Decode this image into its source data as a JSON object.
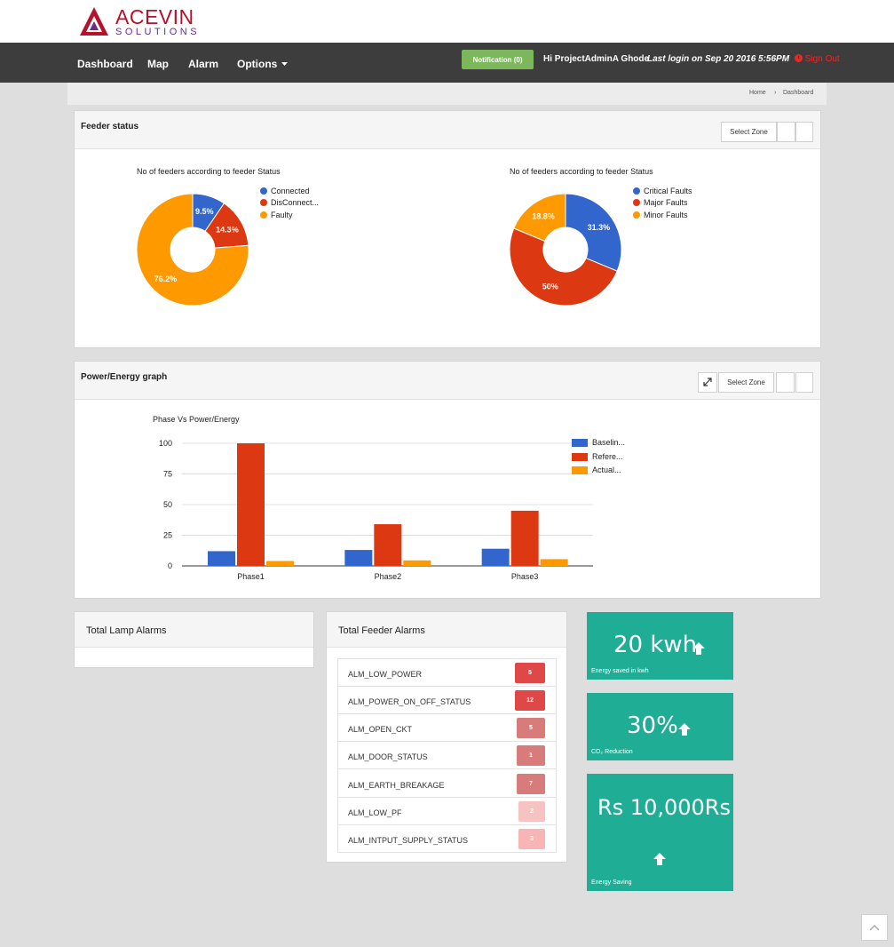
{
  "brand": {
    "name": "ACEVIN",
    "sub": "SOLUTIONS",
    "color": "#b5122d",
    "sub_color": "#6a2b8c"
  },
  "nav": {
    "items": [
      "Dashboard",
      "Map",
      "Alarm",
      "Options"
    ],
    "notification_label": "Notification (0)",
    "greeting": "Hi ProjectAdminA Ghode",
    "last_login": "Last login on Sep 20 2016 5:56PM",
    "sign_out": "Sign Out"
  },
  "breadcrumb": [
    "Home",
    "Dashboard"
  ],
  "feeder_panel": {
    "title": "Feeder status",
    "select_zone": "Select Zone"
  },
  "energy_panel": {
    "title": "Power/Energy graph",
    "select_zone": "Select Zone"
  },
  "chart_data": [
    {
      "type": "pie",
      "title": "No of feeders according to feeder Status",
      "donut": true,
      "labels": [
        "Connected",
        "DisConnect...",
        "Faulty"
      ],
      "values": [
        9.5,
        14.3,
        76.2
      ],
      "value_labels": [
        "9.5%",
        "14.3%",
        "76.2%"
      ],
      "colors": [
        "#3366cc",
        "#dc3912",
        "#ff9900"
      ],
      "legend": "right"
    },
    {
      "type": "pie",
      "title": "No of feeders according to feeder Status",
      "donut": true,
      "labels": [
        "Critical Faults",
        "Major Faults",
        "Minor Faults"
      ],
      "values": [
        31.3,
        50,
        18.8
      ],
      "value_labels": [
        "31.3%",
        "50%",
        "18.8%"
      ],
      "colors": [
        "#3366cc",
        "#dc3912",
        "#ff9900"
      ],
      "legend": "right"
    },
    {
      "type": "bar",
      "title": "Phase Vs Power/Energy",
      "categories": [
        "Phase1",
        "Phase2",
        "Phase3"
      ],
      "series": [
        {
          "name": "Baselin...",
          "values": [
            12,
            13,
            14
          ],
          "color": "#3366cc"
        },
        {
          "name": "Refere...",
          "values": [
            100,
            34,
            45
          ],
          "color": "#dc3912"
        },
        {
          "name": "Actual...",
          "values": [
            4,
            4.5,
            5.5
          ],
          "color": "#ff9900"
        }
      ],
      "ylim": [
        0,
        100
      ],
      "yticks": [
        0,
        25,
        50,
        75,
        100
      ],
      "grid": true,
      "legend": "right"
    }
  ],
  "lamp_alarms": {
    "title": "Total Lamp Alarms"
  },
  "feeder_alarms": {
    "title": "Total Feeder Alarms",
    "rows": [
      {
        "label": "ALM_LOW_POWER",
        "count": "5",
        "color": "#e04848"
      },
      {
        "label": "ALM_POWER_ON_OFF_STATUS",
        "count": "12",
        "color": "#e04848"
      },
      {
        "label": "ALM_OPEN_CKT",
        "count": "5",
        "color": "#d77b7b"
      },
      {
        "label": "ALM_DOOR_STATUS",
        "count": "1",
        "color": "#d77b7b"
      },
      {
        "label": "ALM_EARTH_BREAKAGE",
        "count": "7",
        "color": "#d77b7b"
      },
      {
        "label": "ALM_LOW_PF",
        "count": "2",
        "color": "#f7c2c2"
      },
      {
        "label": "ALM_INTPUT_SUPPLY_STATUS",
        "count": "3",
        "color": "#f7b5b5"
      }
    ]
  },
  "tiles": [
    {
      "value": "20 kwh",
      "label": "Energy saved in kwh"
    },
    {
      "value": "30%",
      "label": "CO₂ Reduction"
    },
    {
      "value": "Rs 10,000Rs",
      "label": "Energy Saving"
    }
  ],
  "tile_color": "#20ad96"
}
